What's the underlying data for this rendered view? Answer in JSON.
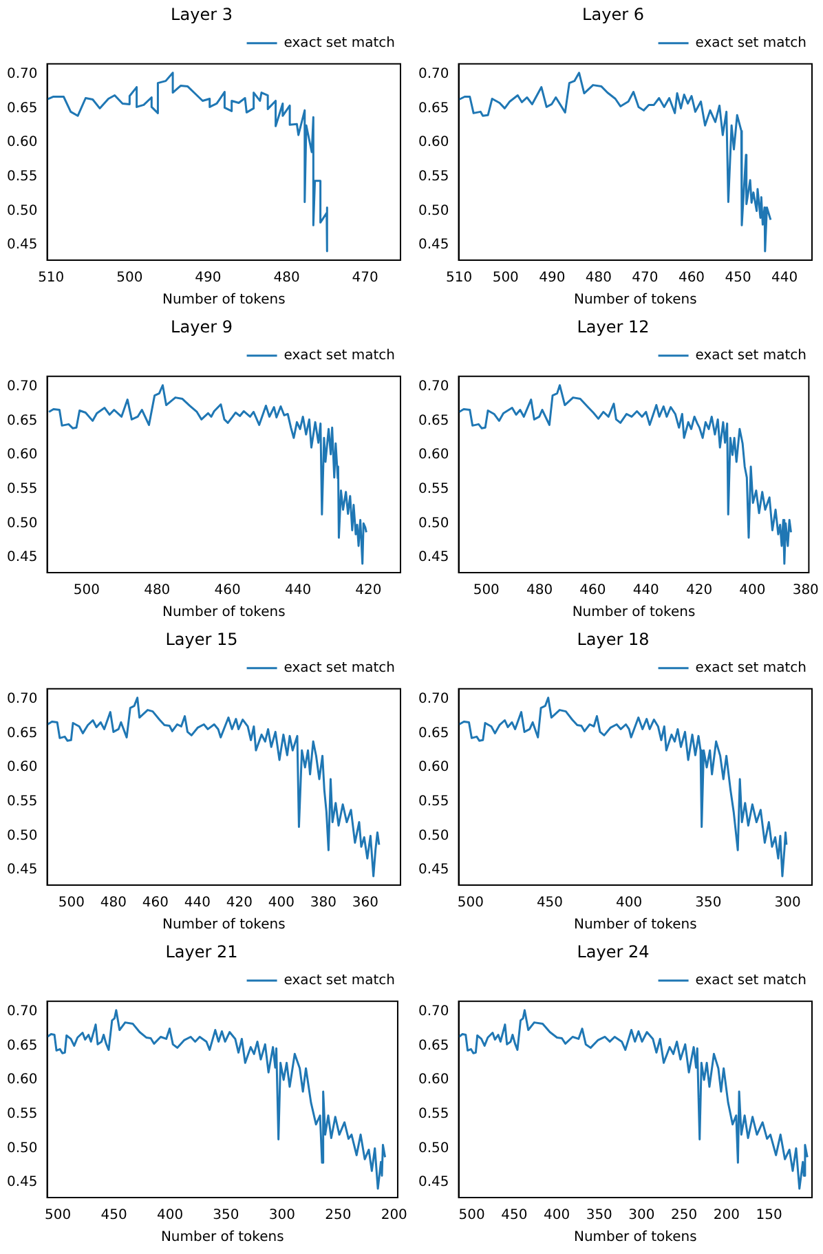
{
  "chart_data": [
    {
      "type": "line",
      "title": "Layer 3",
      "xlabel": "Number of tokens",
      "xlim": [
        510.5,
        465.5
      ],
      "xticks": [
        510,
        500,
        490,
        480,
        470
      ],
      "ylim": [
        0.428,
        0.715
      ],
      "yticks": [
        {
          "value": 0.45,
          "label": "0.45"
        },
        {
          "value": 0.5,
          "label": "0.50"
        },
        {
          "value": 0.55,
          "label": "0.55"
        },
        {
          "value": 0.6,
          "label": "0.60"
        },
        {
          "value": 0.65,
          "label": "0.65"
        },
        {
          "value": 0.7,
          "label": "0.70"
        }
      ],
      "grid": false,
      "legend": "top right",
      "marker": "none",
      "series": [
        {
          "name": "exact set match",
          "color": "#1f77b4",
          "x": [
            510.5,
            509.7,
            508.4,
            507.5,
            506.6,
            505.6,
            504.7,
            503.8,
            502.7,
            501.9,
            500.9,
            500,
            500,
            499.1,
            499.1,
            498.2,
            497.2,
            497.2,
            496.4,
            496.4,
            495.4,
            494.5,
            494.5,
            493.5,
            492.6,
            491.7,
            490.7,
            489.8,
            489.8,
            488.9,
            487.9,
            487.9,
            487,
            487,
            486.1,
            485.3,
            485.1,
            484.2,
            484.2,
            483.4,
            483.2,
            482.4,
            482.4,
            481.4,
            481.4,
            480.5,
            480.5,
            479.6,
            479.6,
            478.7,
            478.5,
            477.7,
            477.7,
            477.5,
            476.8,
            476.6,
            476.6,
            476.4,
            475.7,
            475.7,
            474.9,
            474.9,
            474.8
          ],
          "values": [
            0.663,
            0.667,
            0.667,
            0.645,
            0.639,
            0.665,
            0.663,
            0.65,
            0.664,
            0.669,
            0.657,
            0.656,
            0.668,
            0.681,
            0.652,
            0.655,
            0.666,
            0.652,
            0.643,
            0.687,
            0.69,
            0.702,
            0.673,
            0.683,
            0.682,
            0.672,
            0.661,
            0.664,
            0.652,
            0.657,
            0.674,
            0.651,
            0.646,
            0.661,
            0.658,
            0.665,
            0.644,
            0.65,
            0.673,
            0.661,
            0.673,
            0.669,
            0.649,
            0.661,
            0.624,
            0.657,
            0.639,
            0.654,
            0.626,
            0.627,
            0.611,
            0.647,
            0.513,
            0.625,
            0.586,
            0.637,
            0.479,
            0.544,
            0.544,
            0.483,
            0.497,
            0.505,
            0.441
          ]
        }
      ]
    },
    {
      "type": "line",
      "title": "Layer 6",
      "xlabel": "Number of tokens",
      "xlim": [
        510.1,
        434.1
      ],
      "xticks": [
        510,
        500,
        490,
        480,
        470,
        460,
        450,
        440
      ],
      "ylim": [
        0.428,
        0.715
      ],
      "yticks": [
        {
          "value": 0.45,
          "label": "0.45"
        },
        {
          "value": 0.5,
          "label": "0.50"
        },
        {
          "value": 0.55,
          "label": "0.55"
        },
        {
          "value": 0.6,
          "label": "0.60"
        },
        {
          "value": 0.65,
          "label": "0.65"
        },
        {
          "value": 0.7,
          "label": "0.70"
        }
      ],
      "grid": false,
      "legend": "top right",
      "marker": "none",
      "series": [
        {
          "name": "exact set match",
          "color": "#1f77b4",
          "x": [
            510,
            508.8,
            507.7,
            506.9,
            505.4,
            504.9,
            503.8,
            502.9,
            501.3,
            500.2,
            499.1,
            497.4,
            496.5,
            495.4,
            494.3,
            492.3,
            491.2,
            490.1,
            489.2,
            487.2,
            486.3,
            485.2,
            484.2,
            483.1,
            481.2,
            479.4,
            478.1,
            476.4,
            475.3,
            473.6,
            472.5,
            471.4,
            470.3,
            469.2,
            468.1,
            467.0,
            465.9,
            464.8,
            463.6,
            463.1,
            462.3,
            461.6,
            460.8,
            460.0,
            459.2,
            458.0,
            457.1,
            456.0,
            454.9,
            454.0,
            453.3,
            452.5,
            452.1,
            451.4,
            450.9,
            450.2,
            449.3,
            449.2,
            448.3,
            448.2,
            447.4,
            447.1,
            446.7,
            446.0,
            445.8,
            445.2,
            445.0,
            444.7,
            444.3,
            444.2,
            443.8,
            443.0
          ],
          "values": [
            0.663,
            0.667,
            0.667,
            0.643,
            0.645,
            0.639,
            0.64,
            0.664,
            0.658,
            0.65,
            0.66,
            0.669,
            0.659,
            0.666,
            0.656,
            0.681,
            0.652,
            0.656,
            0.666,
            0.644,
            0.687,
            0.69,
            0.702,
            0.672,
            0.684,
            0.682,
            0.673,
            0.664,
            0.653,
            0.66,
            0.674,
            0.652,
            0.647,
            0.655,
            0.655,
            0.665,
            0.652,
            0.665,
            0.643,
            0.672,
            0.65,
            0.67,
            0.657,
            0.668,
            0.645,
            0.66,
            0.625,
            0.647,
            0.63,
            0.654,
            0.611,
            0.645,
            0.513,
            0.625,
            0.59,
            0.64,
            0.617,
            0.479,
            0.582,
            0.51,
            0.545,
            0.512,
            0.527,
            0.5,
            0.532,
            0.49,
            0.52,
            0.48,
            0.505,
            0.441,
            0.505,
            0.487
          ]
        }
      ]
    },
    {
      "type": "line",
      "title": "Layer 9",
      "xlabel": "Number of tokens",
      "xlim": [
        511.2,
        410.9
      ],
      "xticks": [
        500,
        480,
        460,
        440,
        420
      ],
      "ylim": [
        0.428,
        0.715
      ],
      "yticks": [
        {
          "value": 0.45,
          "label": "0.45"
        },
        {
          "value": 0.5,
          "label": "0.50"
        },
        {
          "value": 0.55,
          "label": "0.55"
        },
        {
          "value": 0.6,
          "label": "0.60"
        },
        {
          "value": 0.65,
          "label": "0.65"
        },
        {
          "value": 0.7,
          "label": "0.70"
        }
      ],
      "grid": false,
      "legend": "top right",
      "marker": "none",
      "series": [
        {
          "name": "exact set match",
          "color": "#1f77b4",
          "x": [
            510.7,
            509.4,
            507.7,
            507.0,
            505.1,
            503.9,
            502.9,
            502.0,
            500.3,
            498.3,
            497.1,
            494.9,
            493.5,
            492.2,
            490.1,
            488.4,
            487.2,
            485.5,
            484.3,
            482.3,
            480.7,
            479.4,
            478.4,
            477.4,
            474.8,
            472.8,
            470.7,
            468.7,
            467.4,
            465.5,
            464.6,
            463.8,
            461.9,
            460.9,
            459.9,
            458.7,
            457.7,
            456.5,
            455.4,
            453.6,
            452.6,
            451.0,
            449.1,
            448.1,
            446.8,
            446.1,
            444.9,
            443.9,
            442.9,
            442.0,
            441.2,
            440.3,
            439.4,
            438.6,
            437.7,
            436.8,
            436.2,
            435.1,
            434.2,
            433.6,
            433.2,
            432.6,
            432.2,
            431.3,
            430.7,
            430.3,
            429.7,
            429.3,
            428.7,
            428.6,
            428.4,
            427.8,
            427.2,
            426.4,
            425.8,
            425.2,
            424.6,
            424.2,
            423.6,
            423.2,
            422.8,
            422.3,
            421.7,
            421.4,
            420.9,
            420.6
          ],
          "values": [
            0.663,
            0.667,
            0.666,
            0.643,
            0.645,
            0.639,
            0.64,
            0.665,
            0.662,
            0.65,
            0.661,
            0.669,
            0.659,
            0.666,
            0.656,
            0.681,
            0.652,
            0.656,
            0.666,
            0.644,
            0.687,
            0.69,
            0.702,
            0.673,
            0.684,
            0.682,
            0.672,
            0.663,
            0.652,
            0.661,
            0.656,
            0.664,
            0.674,
            0.652,
            0.647,
            0.655,
            0.662,
            0.657,
            0.664,
            0.656,
            0.663,
            0.644,
            0.672,
            0.656,
            0.67,
            0.655,
            0.671,
            0.658,
            0.66,
            0.64,
            0.625,
            0.648,
            0.638,
            0.656,
            0.63,
            0.652,
            0.611,
            0.648,
            0.618,
            0.646,
            0.513,
            0.625,
            0.59,
            0.638,
            0.601,
            0.64,
            0.567,
            0.617,
            0.566,
            0.583,
            0.479,
            0.548,
            0.52,
            0.546,
            0.514,
            0.54,
            0.49,
            0.527,
            0.484,
            0.498,
            0.467,
            0.505,
            0.441,
            0.5,
            0.494,
            0.487
          ]
        }
      ]
    },
    {
      "type": "line",
      "title": "Layer 12",
      "xlabel": "Number of tokens",
      "xlim": [
        510.4,
        378.8
      ],
      "xticks": [
        500,
        480,
        460,
        440,
        420,
        400,
        380
      ],
      "ylim": [
        0.428,
        0.715
      ],
      "yticks": [
        {
          "value": 0.45,
          "label": "0.45"
        },
        {
          "value": 0.5,
          "label": "0.50"
        },
        {
          "value": 0.55,
          "label": "0.55"
        },
        {
          "value": 0.6,
          "label": "0.60"
        },
        {
          "value": 0.65,
          "label": "0.65"
        },
        {
          "value": 0.7,
          "label": "0.70"
        }
      ],
      "grid": false,
      "legend": "top right",
      "marker": "none",
      "series": [
        {
          "name": "exact set match",
          "color": "#1f77b4",
          "x": [
            510.2,
            508.5,
            506.2,
            505.2,
            502.9,
            501.7,
            500.4,
            499.4,
            497.1,
            495.2,
            493.6,
            490.3,
            488.8,
            487.3,
            485.9,
            483.2,
            482.0,
            480.1,
            479.0,
            476.3,
            475.1,
            473.4,
            472.4,
            470.5,
            467.4,
            464.7,
            461.8,
            459.8,
            457.9,
            456.0,
            454.1,
            452.1,
            451.2,
            449.6,
            447.3,
            445.4,
            443.4,
            441.5,
            440.0,
            438.6,
            436.1,
            435.0,
            433.4,
            432.2,
            430.7,
            429.0,
            427.6,
            426.4,
            425.7,
            424.1,
            423.0,
            421.8,
            420.7,
            419.9,
            418.7,
            417.6,
            416.4,
            415.3,
            414.1,
            413.0,
            412.2,
            411.0,
            410.3,
            409.5,
            409.1,
            408.3,
            407.5,
            406.8,
            406.0,
            404.8,
            403.7,
            402.9,
            402.1,
            401.4,
            400.6,
            399.8,
            398.6,
            397.5,
            396.3,
            395.2,
            393.6,
            392.5,
            391.3,
            390.3,
            389.6,
            389.0,
            388.4,
            388.0,
            387.5,
            386.7,
            386.1,
            385.5
          ],
          "values": [
            0.663,
            0.667,
            0.666,
            0.643,
            0.645,
            0.639,
            0.64,
            0.665,
            0.66,
            0.65,
            0.661,
            0.669,
            0.659,
            0.666,
            0.656,
            0.681,
            0.652,
            0.656,
            0.666,
            0.644,
            0.687,
            0.69,
            0.702,
            0.673,
            0.684,
            0.682,
            0.67,
            0.662,
            0.653,
            0.663,
            0.656,
            0.675,
            0.652,
            0.647,
            0.66,
            0.656,
            0.664,
            0.656,
            0.663,
            0.644,
            0.673,
            0.656,
            0.671,
            0.656,
            0.67,
            0.66,
            0.64,
            0.66,
            0.625,
            0.648,
            0.638,
            0.656,
            0.646,
            0.64,
            0.625,
            0.648,
            0.638,
            0.656,
            0.63,
            0.652,
            0.611,
            0.648,
            0.618,
            0.646,
            0.513,
            0.625,
            0.6,
            0.625,
            0.59,
            0.638,
            0.617,
            0.583,
            0.567,
            0.479,
            0.583,
            0.53,
            0.548,
            0.515,
            0.546,
            0.52,
            0.538,
            0.49,
            0.52,
            0.484,
            0.498,
            0.467,
            0.505,
            0.441,
            0.5,
            0.467,
            0.505,
            0.487
          ]
        }
      ]
    },
    {
      "type": "line",
      "title": "Layer 15",
      "xlabel": "Number of tokens",
      "xlim": [
        511.6,
        343.2
      ],
      "xticks": [
        500,
        480,
        460,
        440,
        420,
        400,
        380,
        360
      ],
      "ylim": [
        0.428,
        0.715
      ],
      "yticks": [
        {
          "value": 0.45,
          "label": "0.45"
        },
        {
          "value": 0.5,
          "label": "0.50"
        },
        {
          "value": 0.55,
          "label": "0.55"
        },
        {
          "value": 0.6,
          "label": "0.60"
        },
        {
          "value": 0.65,
          "label": "0.65"
        },
        {
          "value": 0.7,
          "label": "0.70"
        }
      ],
      "grid": false,
      "legend": "top right",
      "marker": "none",
      "series": [
        {
          "name": "exact set match",
          "color": "#1f77b4",
          "x": [
            511.4,
            509.3,
            506.8,
            505.6,
            503.2,
            501.9,
            500.2,
            499.3,
            496.3,
            494.6,
            492.2,
            489.8,
            488.1,
            486.1,
            484.4,
            481.5,
            480.0,
            477.6,
            476.4,
            473.7,
            472.0,
            470.1,
            468.6,
            467.6,
            463.7,
            461.3,
            458.1,
            455.7,
            453.3,
            452.0,
            449.6,
            447.7,
            446.0,
            444.7,
            442.8,
            439.9,
            436.9,
            435.0,
            432.0,
            430.1,
            428.9,
            425.2,
            423.5,
            421.6,
            420.4,
            418.4,
            416.0,
            414.5,
            413.1,
            412.1,
            409.4,
            407.7,
            406.3,
            404.8,
            402.8,
            400.9,
            399.0,
            397.2,
            396.0,
            394.6,
            392.4,
            391.6,
            390.2,
            388.7,
            387.3,
            386.3,
            384.8,
            383.4,
            381.9,
            380.4,
            379.5,
            378.5,
            377.5,
            376.5,
            375.6,
            374.1,
            372.7,
            370.7,
            368.8,
            366.8,
            364.9,
            362.9,
            361.9,
            360.5,
            359.0,
            357.5,
            356.1,
            355.1,
            354.2,
            353.4
          ],
          "values": [
            0.663,
            0.667,
            0.666,
            0.643,
            0.645,
            0.639,
            0.64,
            0.665,
            0.66,
            0.65,
            0.662,
            0.669,
            0.659,
            0.666,
            0.656,
            0.681,
            0.652,
            0.656,
            0.666,
            0.644,
            0.687,
            0.69,
            0.702,
            0.673,
            0.684,
            0.682,
            0.67,
            0.662,
            0.661,
            0.653,
            0.663,
            0.66,
            0.675,
            0.652,
            0.647,
            0.658,
            0.663,
            0.656,
            0.663,
            0.656,
            0.644,
            0.673,
            0.656,
            0.671,
            0.656,
            0.67,
            0.66,
            0.64,
            0.66,
            0.625,
            0.648,
            0.638,
            0.656,
            0.63,
            0.652,
            0.611,
            0.648,
            0.618,
            0.646,
            0.625,
            0.646,
            0.513,
            0.625,
            0.6,
            0.625,
            0.59,
            0.638,
            0.617,
            0.583,
            0.617,
            0.567,
            0.535,
            0.479,
            0.583,
            0.52,
            0.548,
            0.515,
            0.546,
            0.52,
            0.538,
            0.49,
            0.52,
            0.484,
            0.498,
            0.467,
            0.5,
            0.441,
            0.48,
            0.505,
            0.487
          ]
        }
      ]
    },
    {
      "type": "line",
      "title": "Layer 18",
      "xlabel": "Number of tokens",
      "xlim": [
        507.5,
        284.6
      ],
      "xticks": [
        500,
        450,
        400,
        350,
        300
      ],
      "ylim": [
        0.428,
        0.715
      ],
      "yticks": [
        {
          "value": 0.45,
          "label": "0.45"
        },
        {
          "value": 0.5,
          "label": "0.50"
        },
        {
          "value": 0.55,
          "label": "0.55"
        },
        {
          "value": 0.6,
          "label": "0.60"
        },
        {
          "value": 0.65,
          "label": "0.65"
        },
        {
          "value": 0.7,
          "label": "0.70"
        }
      ],
      "grid": false,
      "legend": "top right",
      "marker": "none",
      "series": [
        {
          "name": "exact set match",
          "color": "#1f77b4",
          "x": [
            507.2,
            504.2,
            501.0,
            499.3,
            496.1,
            494.4,
            492.2,
            490.8,
            486.9,
            484.6,
            481.7,
            478.4,
            476.5,
            473.9,
            471.9,
            468.0,
            466.0,
            462.7,
            460.8,
            457.5,
            455.6,
            452.9,
            451.0,
            449.0,
            443.8,
            439.9,
            435.9,
            432.7,
            430.1,
            428.1,
            424.8,
            422.2,
            420.3,
            418.3,
            415.7,
            411.8,
            407.8,
            405.2,
            402.0,
            400.0,
            398.7,
            394.1,
            391.5,
            388.9,
            387.0,
            384.3,
            381.7,
            379.7,
            377.8,
            376.5,
            373.2,
            371.2,
            369.3,
            367.3,
            364.7,
            362.7,
            360.1,
            358.2,
            356.2,
            354.9,
            354.2,
            352.9,
            351.0,
            349.0,
            347.7,
            345.1,
            342.5,
            340.5,
            338.6,
            336.0,
            334.0,
            331.4,
            330.1,
            328.8,
            326.8,
            324.8,
            322.2,
            319.6,
            317.0,
            314.4,
            311.8,
            309.8,
            307.8,
            305.9,
            304.6,
            303.3,
            302.0,
            301.3,
            300.7
          ],
          "values": [
            0.663,
            0.667,
            0.666,
            0.643,
            0.645,
            0.639,
            0.64,
            0.665,
            0.66,
            0.65,
            0.662,
            0.669,
            0.659,
            0.666,
            0.656,
            0.681,
            0.652,
            0.656,
            0.666,
            0.644,
            0.687,
            0.69,
            0.702,
            0.673,
            0.684,
            0.682,
            0.67,
            0.662,
            0.661,
            0.653,
            0.663,
            0.66,
            0.675,
            0.652,
            0.647,
            0.658,
            0.663,
            0.656,
            0.663,
            0.656,
            0.644,
            0.673,
            0.656,
            0.671,
            0.656,
            0.67,
            0.66,
            0.64,
            0.66,
            0.625,
            0.648,
            0.638,
            0.656,
            0.63,
            0.652,
            0.611,
            0.648,
            0.618,
            0.646,
            0.625,
            0.513,
            0.625,
            0.6,
            0.625,
            0.59,
            0.638,
            0.617,
            0.583,
            0.617,
            0.567,
            0.535,
            0.479,
            0.583,
            0.52,
            0.548,
            0.515,
            0.546,
            0.52,
            0.538,
            0.49,
            0.52,
            0.484,
            0.498,
            0.467,
            0.5,
            0.441,
            0.48,
            0.505,
            0.487
          ]
        }
      ]
    },
    {
      "type": "line",
      "title": "Layer 21",
      "xlabel": "Number of tokens",
      "xlim": [
        509.6,
        196.8
      ],
      "xticks": [
        500,
        450,
        400,
        350,
        300,
        250,
        200
      ],
      "ylim": [
        0.428,
        0.715
      ],
      "yticks": [
        {
          "value": 0.45,
          "label": "0.45"
        },
        {
          "value": 0.5,
          "label": "0.50"
        },
        {
          "value": 0.55,
          "label": "0.55"
        },
        {
          "value": 0.6,
          "label": "0.60"
        },
        {
          "value": 0.65,
          "label": "0.65"
        },
        {
          "value": 0.7,
          "label": "0.70"
        }
      ],
      "grid": false,
      "legend": "top right",
      "marker": "none",
      "series": [
        {
          "name": "exact set match",
          "color": "#1f77b4",
          "x": [
            509.5,
            506.1,
            503.1,
            501.3,
            498.2,
            496.0,
            493.8,
            492.3,
            488.5,
            485.5,
            482.5,
            478.0,
            475.7,
            472.7,
            470.5,
            466.3,
            464.5,
            461.1,
            459.2,
            457.0,
            454.7,
            451.7,
            449.5,
            448.0,
            445.0,
            440.0,
            433.1,
            427.1,
            421.2,
            417.2,
            414.2,
            408.3,
            403.3,
            400.3,
            397.4,
            393.4,
            387.4,
            381.5,
            377.5,
            373.5,
            367.5,
            364.6,
            359.6,
            356.7,
            353.7,
            350.8,
            346.8,
            341.8,
            338.9,
            335.9,
            332.9,
            328.0,
            325.0,
            322.0,
            319.0,
            315.1,
            312.1,
            308.1,
            306.1,
            305.1,
            303.2,
            301.4,
            298.6,
            295.9,
            293.2,
            288.7,
            284.2,
            281.4,
            278.7,
            274.2,
            269.7,
            266.1,
            264.3,
            263.3,
            261.5,
            258.8,
            256.1,
            252.5,
            248.9,
            244.3,
            240.7,
            238.0,
            233.5,
            229.9,
            226.2,
            222.6,
            219.9,
            217.2,
            214.5,
            211.8,
            210.9,
            210.0,
            208.1
          ],
          "values": [
            0.663,
            0.667,
            0.666,
            0.643,
            0.645,
            0.639,
            0.64,
            0.665,
            0.66,
            0.65,
            0.662,
            0.669,
            0.659,
            0.666,
            0.656,
            0.681,
            0.652,
            0.656,
            0.666,
            0.653,
            0.644,
            0.687,
            0.69,
            0.702,
            0.673,
            0.684,
            0.682,
            0.67,
            0.662,
            0.661,
            0.653,
            0.663,
            0.66,
            0.675,
            0.652,
            0.647,
            0.658,
            0.663,
            0.656,
            0.663,
            0.656,
            0.644,
            0.673,
            0.656,
            0.671,
            0.656,
            0.67,
            0.66,
            0.64,
            0.66,
            0.625,
            0.648,
            0.638,
            0.656,
            0.63,
            0.652,
            0.611,
            0.648,
            0.618,
            0.646,
            0.513,
            0.625,
            0.6,
            0.625,
            0.59,
            0.638,
            0.617,
            0.583,
            0.617,
            0.567,
            0.535,
            0.548,
            0.479,
            0.583,
            0.52,
            0.548,
            0.515,
            0.546,
            0.52,
            0.538,
            0.514,
            0.52,
            0.49,
            0.52,
            0.484,
            0.498,
            0.467,
            0.5,
            0.441,
            0.48,
            0.46,
            0.505,
            0.487
          ]
        }
      ]
    },
    {
      "type": "line",
      "title": "Layer 24",
      "xlabel": "Number of tokens",
      "xlim": [
        515.5,
        99.4
      ],
      "xticks": [
        500,
        450,
        400,
        350,
        300,
        250,
        200,
        150
      ],
      "ylim": [
        0.428,
        0.715
      ],
      "yticks": [
        {
          "value": 0.45,
          "label": "0.45"
        },
        {
          "value": 0.5,
          "label": "0.50"
        },
        {
          "value": 0.55,
          "label": "0.55"
        },
        {
          "value": 0.6,
          "label": "0.60"
        },
        {
          "value": 0.65,
          "label": "0.65"
        },
        {
          "value": 0.7,
          "label": "0.70"
        }
      ],
      "grid": false,
      "legend": "top right",
      "marker": "none",
      "series": [
        {
          "name": "exact set match",
          "color": "#1f77b4",
          "x": [
            515.2,
            511.0,
            507.2,
            504.9,
            501.0,
            498.2,
            495.4,
            493.5,
            488.8,
            485.0,
            481.2,
            475.5,
            472.7,
            468.9,
            466.2,
            460.9,
            458.6,
            454.3,
            452.0,
            449.1,
            446.3,
            442.6,
            439.7,
            437.8,
            433.5,
            426.5,
            416.6,
            408.1,
            399.7,
            394.0,
            389.8,
            381.3,
            374.3,
            370.0,
            365.8,
            360.1,
            351.6,
            343.2,
            337.5,
            331.8,
            323.4,
            319.2,
            312.1,
            307.9,
            303.7,
            299.5,
            293.8,
            286.8,
            282.6,
            278.3,
            274.0,
            267.0,
            262.7,
            258.5,
            254.3,
            248.7,
            244.4,
            238.7,
            235.9,
            234.5,
            231.7,
            229.6,
            226.5,
            223.3,
            220.2,
            214.9,
            209.7,
            206.5,
            203.4,
            198.2,
            192.9,
            188.7,
            186.6,
            185.2,
            182.6,
            178.7,
            174.7,
            169.4,
            164.2,
            157.6,
            152.3,
            148.4,
            141.8,
            136.5,
            131.3,
            126.0,
            122.1,
            118.1,
            114.2,
            110.2,
            109.0,
            107.6,
            104.9
          ],
          "values": [
            0.663,
            0.667,
            0.666,
            0.643,
            0.645,
            0.639,
            0.64,
            0.665,
            0.66,
            0.65,
            0.662,
            0.669,
            0.659,
            0.666,
            0.656,
            0.681,
            0.652,
            0.656,
            0.666,
            0.653,
            0.644,
            0.687,
            0.69,
            0.702,
            0.673,
            0.684,
            0.682,
            0.67,
            0.662,
            0.661,
            0.653,
            0.663,
            0.66,
            0.675,
            0.652,
            0.647,
            0.658,
            0.663,
            0.656,
            0.663,
            0.656,
            0.644,
            0.673,
            0.656,
            0.671,
            0.656,
            0.67,
            0.66,
            0.64,
            0.66,
            0.625,
            0.648,
            0.638,
            0.656,
            0.63,
            0.652,
            0.611,
            0.648,
            0.618,
            0.646,
            0.513,
            0.625,
            0.6,
            0.625,
            0.59,
            0.638,
            0.617,
            0.583,
            0.617,
            0.567,
            0.535,
            0.548,
            0.479,
            0.583,
            0.52,
            0.548,
            0.515,
            0.546,
            0.52,
            0.538,
            0.514,
            0.52,
            0.49,
            0.52,
            0.484,
            0.498,
            0.467,
            0.5,
            0.441,
            0.48,
            0.46,
            0.505,
            0.487
          ]
        }
      ]
    }
  ]
}
